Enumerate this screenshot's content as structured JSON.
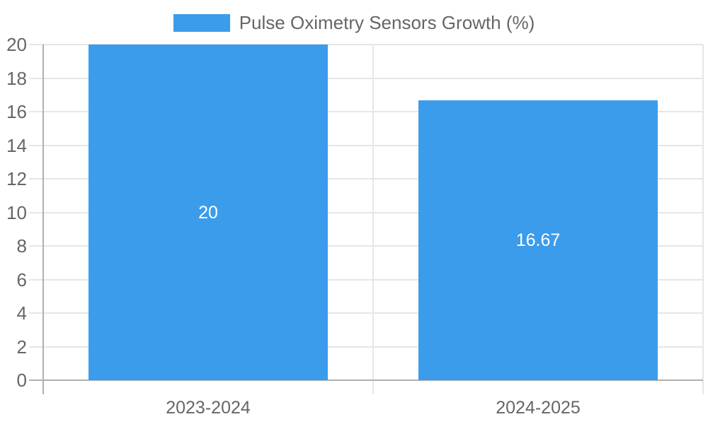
{
  "legend": {
    "label": "Pulse Oximetry Sensors Growth (%)"
  },
  "chart_data": {
    "type": "bar",
    "title": "",
    "categories": [
      "2023-2024",
      "2024-2025"
    ],
    "series": [
      {
        "name": "Pulse Oximetry Sensors Growth (%)",
        "values": [
          20,
          16.67
        ]
      }
    ],
    "value_labels": [
      "20",
      "16.67"
    ],
    "xlabel": "",
    "ylabel": "",
    "ylim": [
      0,
      20
    ],
    "y_ticks": [
      0,
      2,
      4,
      6,
      8,
      10,
      12,
      14,
      16,
      18,
      20
    ],
    "grid": true,
    "legend_position": "top",
    "bar_color": "#3b9cec",
    "value_label_color": "#ffffff",
    "axis_text_color": "#666666",
    "grid_color": "#e6e6e6",
    "axis_line_color": "#b0b0b0"
  }
}
